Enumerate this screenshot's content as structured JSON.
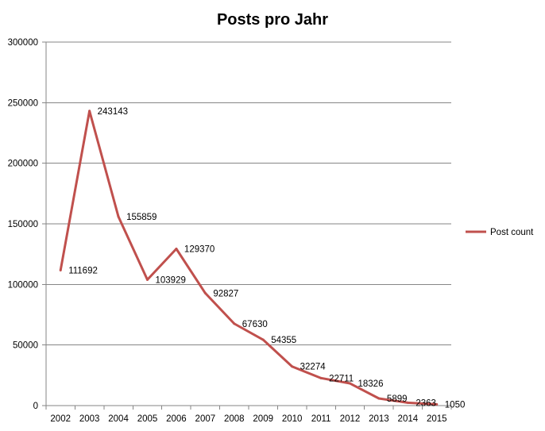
{
  "chart_data": {
    "type": "line",
    "title": "Posts pro Jahr",
    "xlabel": "",
    "ylabel": "",
    "categories": [
      "2002",
      "2003",
      "2004",
      "2005",
      "2006",
      "2007",
      "2008",
      "2009",
      "2010",
      "2011",
      "2012",
      "2013",
      "2014",
      "2015"
    ],
    "series": [
      {
        "name": "Post count",
        "color": "#c0504d",
        "values": [
          111692,
          243143,
          155859,
          103929,
          129370,
          92827,
          67630,
          54355,
          32274,
          22711,
          18326,
          5899,
          2363,
          1050
        ]
      }
    ],
    "ylim": [
      0,
      300000
    ],
    "yticks": [
      "0",
      "50000",
      "100000",
      "150000",
      "200000",
      "250000",
      "300000"
    ],
    "grid": true,
    "legend_position": "right",
    "data_labels": true
  }
}
